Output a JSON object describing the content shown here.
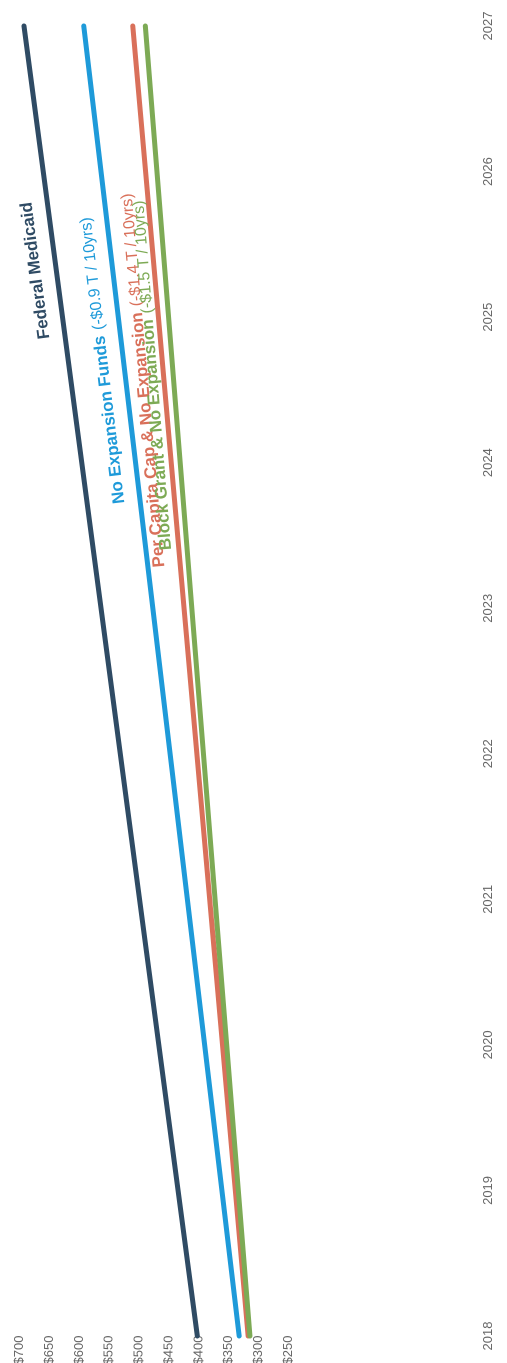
{
  "chart_data": {
    "type": "line",
    "orientation": "rotated-90-clockwise",
    "x": [
      "2018",
      "2019",
      "2020",
      "2021",
      "2022",
      "2023",
      "2024",
      "2025",
      "2026",
      "2027"
    ],
    "y_ticks": [
      "$250",
      "$300",
      "$350",
      "$400",
      "$450",
      "$500",
      "$550",
      "$600",
      "$650",
      "$700"
    ],
    "ylim": [
      250,
      700
    ],
    "grid": false,
    "series": [
      {
        "name": "Federal Medicaid",
        "note": "",
        "color": "#2f4b64",
        "start": 400,
        "end": 690
      },
      {
        "name": "No Expansion Funds",
        "note": "(-$0.9 T / 10yrs)",
        "color": "#1e9ad9",
        "start": 330,
        "end": 590
      },
      {
        "name": "Per Capita Cap & No Expansion",
        "note": "(-$1.4 T / 10yrs)",
        "color": "#d9705a",
        "start": 315,
        "end": 508
      },
      {
        "name": "Block Grant & No Expansion",
        "note": "(-$1.5 T / 10yrs)",
        "color": "#7daa55",
        "start": 312,
        "end": 487
      }
    ]
  }
}
